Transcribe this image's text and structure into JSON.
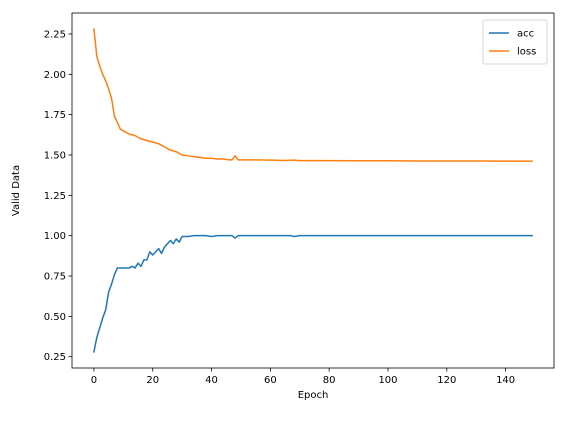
{
  "chart_data": {
    "type": "line",
    "title": "",
    "xlabel": "Epoch",
    "ylabel": "Valid Data",
    "xlim": [
      -7.45,
      156.45
    ],
    "ylim": [
      0.18,
      2.38
    ],
    "xticks": [
      0,
      20,
      40,
      60,
      80,
      100,
      120,
      140
    ],
    "xtick_labels": [
      "0",
      "20",
      "40",
      "60",
      "80",
      "100",
      "120",
      "140"
    ],
    "yticks": [
      0.25,
      0.5,
      0.75,
      1.0,
      1.25,
      1.5,
      1.75,
      2.0,
      2.25
    ],
    "ytick_labels": [
      "0.25",
      "0.50",
      "0.75",
      "1.00",
      "1.25",
      "1.50",
      "1.75",
      "2.00",
      "2.25"
    ],
    "grid": false,
    "legend_position": "top-right",
    "series": [
      {
        "name": "acc",
        "color": "#1f77b4",
        "x": [
          0,
          1,
          2,
          3,
          4,
          5,
          6,
          7,
          8,
          9,
          10,
          11,
          12,
          13,
          14,
          15,
          16,
          17,
          18,
          19,
          20,
          21,
          22,
          23,
          24,
          25,
          26,
          27,
          28,
          29,
          30,
          32,
          34,
          36,
          38,
          40,
          42,
          44,
          46,
          47,
          48,
          49,
          50,
          55,
          60,
          65,
          67,
          68,
          70,
          80,
          90,
          100,
          110,
          120,
          130,
          140,
          149
        ],
        "y": [
          0.28,
          0.37,
          0.43,
          0.49,
          0.54,
          0.65,
          0.7,
          0.76,
          0.8,
          0.8,
          0.8,
          0.8,
          0.8,
          0.81,
          0.8,
          0.83,
          0.81,
          0.85,
          0.85,
          0.9,
          0.88,
          0.9,
          0.92,
          0.89,
          0.93,
          0.95,
          0.97,
          0.95,
          0.98,
          0.96,
          0.995,
          0.995,
          1.0,
          1.0,
          1.0,
          0.995,
          1.0,
          1.0,
          1.0,
          1.0,
          0.985,
          1.0,
          1.0,
          1.0,
          1.0,
          1.0,
          1.0,
          0.995,
          1.0,
          1.0,
          1.0,
          1.0,
          1.0,
          1.0,
          1.0,
          1.0,
          1.0
        ]
      },
      {
        "name": "loss",
        "color": "#ff7f0e",
        "x": [
          0,
          1,
          2,
          3,
          4,
          5,
          6,
          7,
          8,
          9,
          10,
          12,
          14,
          16,
          18,
          20,
          22,
          23,
          24,
          26,
          28,
          30,
          32,
          34,
          36,
          38,
          40,
          42,
          44,
          46,
          47,
          48,
          49,
          50,
          55,
          60,
          65,
          68,
          70,
          80,
          90,
          100,
          110,
          120,
          130,
          140,
          149
        ],
        "y": [
          2.28,
          2.11,
          2.05,
          2.0,
          1.96,
          1.91,
          1.85,
          1.74,
          1.7,
          1.66,
          1.65,
          1.63,
          1.62,
          1.6,
          1.59,
          1.58,
          1.57,
          1.56,
          1.55,
          1.53,
          1.52,
          1.5,
          1.495,
          1.49,
          1.485,
          1.48,
          1.48,
          1.475,
          1.475,
          1.47,
          1.47,
          1.495,
          1.47,
          1.47,
          1.47,
          1.468,
          1.466,
          1.468,
          1.465,
          1.465,
          1.464,
          1.464,
          1.463,
          1.463,
          1.463,
          1.462,
          1.462
        ]
      }
    ]
  }
}
